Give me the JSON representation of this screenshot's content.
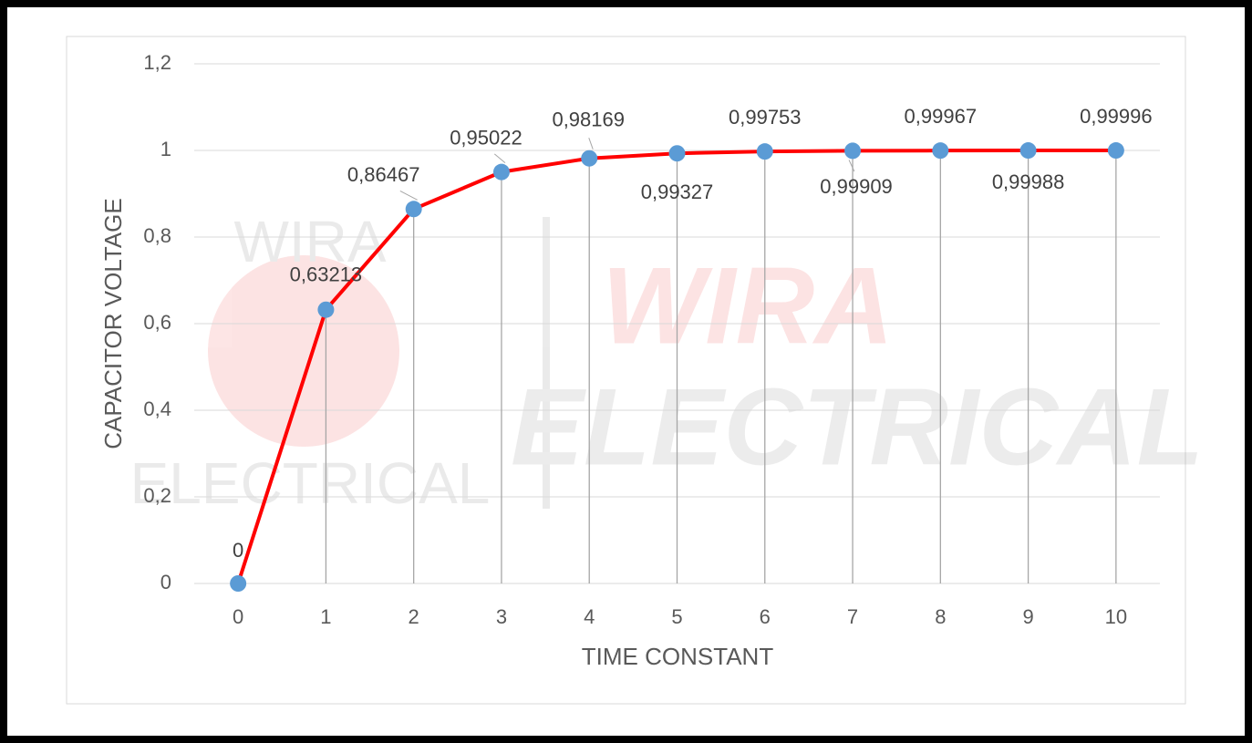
{
  "chart_data": {
    "type": "line",
    "x_axis_label": "TIME CONSTANT",
    "y_axis_label": "CAPACITOR VOLTAGE",
    "x": [
      0,
      1,
      2,
      3,
      4,
      5,
      6,
      7,
      8,
      9,
      10
    ],
    "values": [
      0,
      0.63213,
      0.86467,
      0.95022,
      0.98169,
      0.99327,
      0.99753,
      0.99909,
      0.99967,
      0.99988,
      0.99996
    ],
    "value_labels": [
      "0",
      "0,63213",
      "0,86467",
      "0,95022",
      "0,98169",
      "0,99327",
      "0,99753",
      "0,99909",
      "0,99967",
      "0,99988",
      "0,99996"
    ],
    "color": "#ff0000",
    "marker_color": "#5b9bd5",
    "xlim": [
      -0.5,
      10.5
    ],
    "xticks": [
      0,
      1,
      2,
      3,
      4,
      5,
      6,
      7,
      8,
      9,
      10
    ],
    "ylim": [
      0,
      1.2
    ],
    "yticks": [
      0,
      {
        "value": 0.2,
        "label": "0,2"
      },
      {
        "value": 0.4,
        "label": "0,4"
      },
      {
        "value": 0.6,
        "label": "0,6"
      },
      {
        "value": 0.8,
        "label": "0,8"
      },
      1,
      {
        "value": 1.2,
        "label": "1,2"
      }
    ],
    "grid": true,
    "drop_lines": true,
    "watermark": {
      "small": [
        "WIRA",
        "ELECTRICAL"
      ],
      "large": [
        "WIRA",
        "ELECTRICAL"
      ]
    }
  }
}
